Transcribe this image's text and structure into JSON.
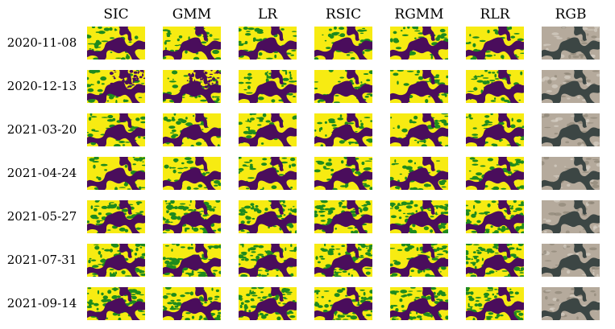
{
  "columns": [
    "SIC",
    "GMM",
    "LR",
    "RSIC",
    "RGMM",
    "RLR",
    "RGB"
  ],
  "rows": [
    "2020-11-08",
    "2020-12-13",
    "2021-03-20",
    "2021-04-24",
    "2021-05-27",
    "2021-07-31",
    "2021-09-14"
  ],
  "colors": {
    "high": "#f7eb12",
    "mid": "#1e8a1e",
    "low": "#4a0d5c",
    "rgb_light": "#b5aa9c",
    "rgb_dark": "#3c4644"
  }
}
